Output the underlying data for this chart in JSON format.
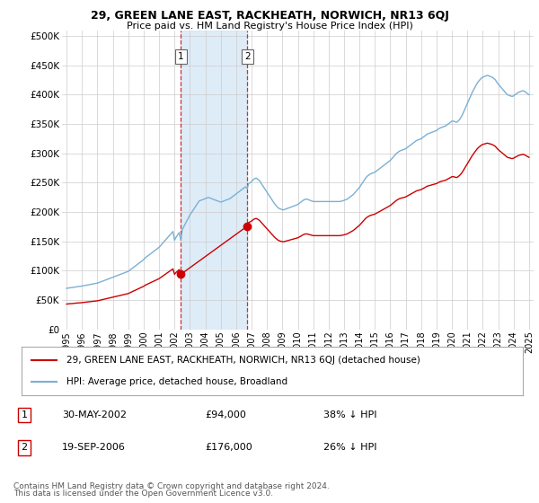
{
  "title1": "29, GREEN LANE EAST, RACKHEATH, NORWICH, NR13 6QJ",
  "title2": "Price paid vs. HM Land Registry's House Price Index (HPI)",
  "ylabel_ticks": [
    "£0",
    "£50K",
    "£100K",
    "£150K",
    "£200K",
    "£250K",
    "£300K",
    "£350K",
    "£400K",
    "£450K",
    "£500K"
  ],
  "ytick_values": [
    0,
    50000,
    100000,
    150000,
    200000,
    250000,
    300000,
    350000,
    400000,
    450000,
    500000
  ],
  "xlim_start": 1994.7,
  "xlim_end": 2025.3,
  "ylim_max": 510000,
  "sale1_date": 2002.41,
  "sale1_price": 94000,
  "sale1_label": "1",
  "sale1_date_str": "30-MAY-2002",
  "sale1_pct": "38% ↓ HPI",
  "sale2_date": 2006.72,
  "sale2_price": 176000,
  "sale2_label": "2",
  "sale2_date_str": "19-SEP-2006",
  "sale2_pct": "26% ↓ HPI",
  "legend_line1": "29, GREEN LANE EAST, RACKHEATH, NORWICH, NR13 6QJ (detached house)",
  "legend_line2": "HPI: Average price, detached house, Broadland",
  "footnote1": "Contains HM Land Registry data © Crown copyright and database right 2024.",
  "footnote2": "This data is licensed under the Open Government Licence v3.0.",
  "line_color_red": "#cc0000",
  "line_color_blue": "#7ab0d4",
  "shade_color": "#d6e8f7",
  "vline_color": "#cc0000",
  "bg_color": "#ffffff",
  "grid_color": "#cccccc"
}
